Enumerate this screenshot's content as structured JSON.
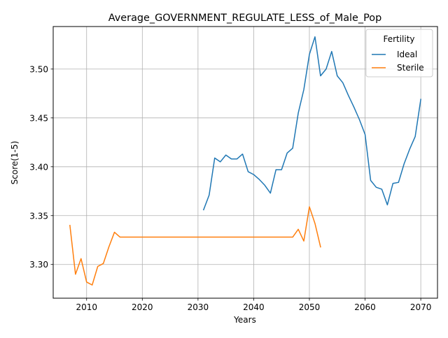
{
  "chart_data": {
    "type": "line",
    "title": "Average_GOVERNMENT_REGULATE_LESS_of_Male_Pop",
    "xlabel": "Years",
    "ylabel": "Score(1-5)",
    "xlim": [
      2004,
      2073
    ],
    "ylim": [
      3.2655,
      3.5435
    ],
    "x_ticks": [
      2010,
      2020,
      2030,
      2040,
      2050,
      2060,
      2070
    ],
    "x_tick_labels": [
      "2010",
      "2020",
      "2030",
      "2040",
      "2050",
      "2060",
      "2070"
    ],
    "y_ticks": [
      3.3,
      3.35,
      3.4,
      3.45,
      3.5
    ],
    "y_tick_labels": [
      "3.30",
      "3.35",
      "3.40",
      "3.45",
      "3.50"
    ],
    "grid": true,
    "legend": {
      "title": "Fertility",
      "placement": "top-right"
    },
    "series": [
      {
        "name": "Ideal",
        "color": "#1f77b4",
        "x": [
          2031,
          2032,
          2033,
          2034,
          2035,
          2036,
          2037,
          2038,
          2039,
          2040,
          2041,
          2042,
          2043,
          2044,
          2045,
          2046,
          2047,
          2048,
          2049,
          2050,
          2051,
          2052,
          2053,
          2054,
          2055,
          2056,
          2057,
          2058,
          2059,
          2060,
          2061,
          2062,
          2063,
          2064,
          2065,
          2066,
          2067,
          2068,
          2069,
          2070
        ],
        "values": [
          3.356,
          3.371,
          3.409,
          3.405,
          3.412,
          3.408,
          3.408,
          3.413,
          3.395,
          3.392,
          3.387,
          3.381,
          3.373,
          3.397,
          3.397,
          3.414,
          3.419,
          3.455,
          3.479,
          3.515,
          3.533,
          3.493,
          3.5,
          3.518,
          3.493,
          3.486,
          3.473,
          3.461,
          3.448,
          3.433,
          3.386,
          3.379,
          3.377,
          3.361,
          3.383,
          3.384,
          3.403,
          3.418,
          3.431,
          3.469
        ]
      },
      {
        "name": "Sterile",
        "color": "#ff7f0e",
        "x": [
          2007,
          2008,
          2009,
          2010,
          2011,
          2012,
          2013,
          2014,
          2015,
          2016,
          2017,
          2018,
          2019,
          2020,
          2021,
          2022,
          2023,
          2024,
          2025,
          2026,
          2027,
          2028,
          2029,
          2030,
          2031,
          2032,
          2033,
          2034,
          2035,
          2036,
          2037,
          2038,
          2039,
          2040,
          2041,
          2042,
          2043,
          2044,
          2045,
          2046,
          2047,
          2048,
          2049,
          2050,
          2051,
          2052
        ],
        "values": [
          3.34,
          3.29,
          3.306,
          3.282,
          3.279,
          3.298,
          3.301,
          3.318,
          3.333,
          3.328,
          3.328,
          3.328,
          3.328,
          3.328,
          3.328,
          3.328,
          3.328,
          3.328,
          3.328,
          3.328,
          3.328,
          3.328,
          3.328,
          3.328,
          3.328,
          3.328,
          3.328,
          3.328,
          3.328,
          3.328,
          3.328,
          3.328,
          3.328,
          3.328,
          3.328,
          3.328,
          3.328,
          3.328,
          3.328,
          3.328,
          3.328,
          3.336,
          3.324,
          3.359,
          3.342,
          3.318
        ]
      }
    ]
  }
}
